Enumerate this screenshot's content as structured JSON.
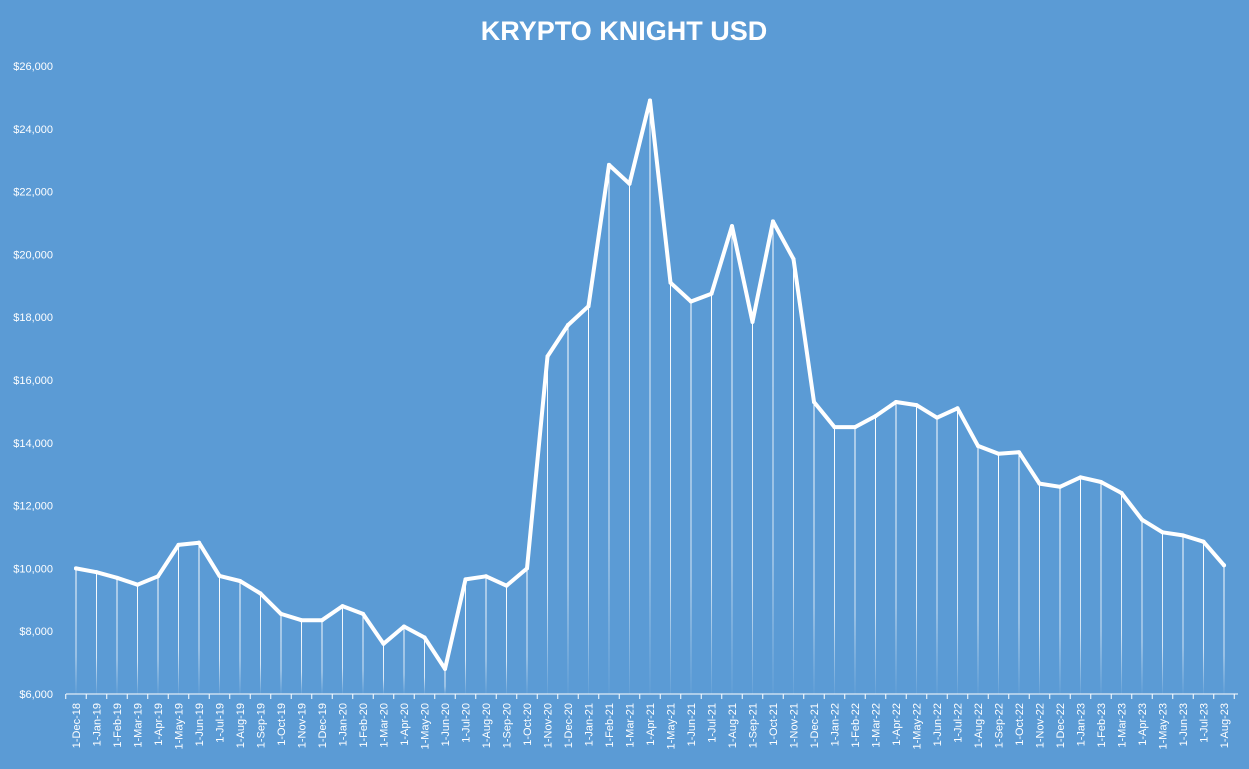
{
  "chart_data": {
    "type": "line",
    "title": "KRYPTO KNIGHT USD",
    "xlabel": "",
    "ylabel": "",
    "ylim": [
      6000,
      26000
    ],
    "y_tick_step": 2000,
    "y_tick_prefix": "$",
    "grid": false,
    "drop_lines": true,
    "legend": "none",
    "colors": {
      "background": "#5B9BD5",
      "line": "#FFFFFF",
      "text": "#FFFFFF"
    },
    "categories": [
      "1-Dec-18",
      "1-Jan-19",
      "1-Feb-19",
      "1-Mar-19",
      "1-Apr-19",
      "1-May-19",
      "1-Jun-19",
      "1-Jul-19",
      "1-Aug-19",
      "1-Sep-19",
      "1-Oct-19",
      "1-Nov-19",
      "1-Dec-19",
      "1-Jan-20",
      "1-Feb-20",
      "1-Mar-20",
      "1-Apr-20",
      "1-May-20",
      "1-Jun-20",
      "1-Jul-20",
      "1-Aug-20",
      "1-Sep-20",
      "1-Oct-20",
      "1-Nov-20",
      "1-Dec-20",
      "1-Jan-21",
      "1-Feb-21",
      "1-Mar-21",
      "1-Apr-21",
      "1-May-21",
      "1-Jun-21",
      "1-Jul-21",
      "1-Aug-21",
      "1-Sep-21",
      "1-Oct-21",
      "1-Nov-21",
      "1-Dec-21",
      "1-Jan-22",
      "1-Feb-22",
      "1-Mar-22",
      "1-Apr-22",
      "1-May-22",
      "1-Jun-22",
      "1-Jul-22",
      "1-Aug-22",
      "1-Sep-22",
      "1-Oct-22",
      "1-Nov-22",
      "1-Dec-22",
      "1-Jan-23",
      "1-Feb-23",
      "1-Mar-23",
      "1-Apr-23",
      "1-May-23",
      "1-Jun-23",
      "1-Jul-23",
      "1-Aug-23"
    ],
    "values": [
      10000,
      9880,
      9700,
      9480,
      9750,
      10750,
      10820,
      9760,
      9600,
      9200,
      8550,
      8350,
      8350,
      8800,
      8550,
      7600,
      8150,
      7800,
      6800,
      9650,
      9750,
      9450,
      10000,
      16750,
      17750,
      18350,
      22850,
      22250,
      24900,
      19100,
      18500,
      18750,
      20900,
      17850,
      21050,
      19850,
      15300,
      14500,
      14500,
      14850,
      15300,
      15200,
      14800,
      15100,
      13900,
      13650,
      13700,
      12700,
      12600,
      12900,
      12750,
      12400,
      11550,
      11150,
      11050,
      10850,
      10100
    ]
  }
}
